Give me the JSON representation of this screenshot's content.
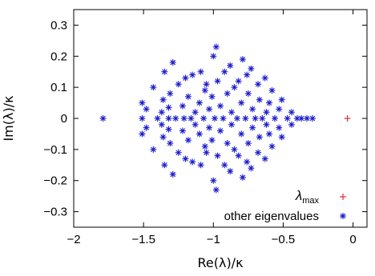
{
  "chart_data": {
    "type": "scatter",
    "title": "",
    "xlabel": "Re(λ)/κ",
    "ylabel": "Im(λ)/κ",
    "xlim": [
      -2,
      0.1
    ],
    "ylim": [
      -0.35,
      0.35
    ],
    "xticks": [
      -2,
      -1.5,
      -1,
      -0.5,
      0
    ],
    "xtick_labels": [
      "−2",
      "−1.5",
      "−1",
      "−0.5",
      "0"
    ],
    "yticks": [
      -0.3,
      -0.2,
      -0.1,
      0,
      0.1,
      0.2,
      0.3
    ],
    "ytick_labels": [
      "−0.3",
      "−0.2",
      "−0.1",
      "0",
      "0.1",
      "0.2",
      "0.3"
    ],
    "grid": false,
    "legend_position": "bottom-right",
    "series": [
      {
        "name": "λmax",
        "label_main": "λ",
        "label_sub": "max",
        "marker": "plus",
        "color": "#e02020",
        "points": [
          [
            -0.04,
            0.0
          ]
        ]
      },
      {
        "name": "other eigenvalues",
        "label_main": "other eigenvalues",
        "label_sub": "",
        "marker": "star",
        "color": "#1a1acc",
        "points": [
          [
            -1.79,
            0.0
          ],
          [
            -1.51,
            0.05
          ],
          [
            -1.51,
            0.0
          ],
          [
            -1.51,
            -0.05
          ],
          [
            -1.48,
            0.03
          ],
          [
            -1.48,
            -0.03
          ],
          [
            -1.43,
            0.1
          ],
          [
            -1.43,
            -0.1
          ],
          [
            -1.4,
            0.0
          ],
          [
            -1.37,
            0.02
          ],
          [
            -1.37,
            -0.02
          ],
          [
            -1.36,
            0.06
          ],
          [
            -1.36,
            -0.06
          ],
          [
            -1.35,
            0.15
          ],
          [
            -1.35,
            -0.15
          ],
          [
            -1.32,
            0.0
          ],
          [
            -1.32,
            0.035
          ],
          [
            -1.32,
            -0.035
          ],
          [
            -1.31,
            0.08
          ],
          [
            -1.31,
            -0.08
          ],
          [
            -1.29,
            0.18
          ],
          [
            -1.29,
            -0.18
          ],
          [
            -1.27,
            0.0
          ],
          [
            -1.25,
            0.11
          ],
          [
            -1.25,
            -0.11
          ],
          [
            -1.22,
            0.04
          ],
          [
            -1.22,
            -0.04
          ],
          [
            -1.21,
            0.0
          ],
          [
            -1.2,
            0.13
          ],
          [
            -1.2,
            -0.13
          ],
          [
            -1.18,
            0.07
          ],
          [
            -1.18,
            -0.07
          ],
          [
            -1.16,
            0.0
          ],
          [
            -1.15,
            0.14
          ],
          [
            -1.15,
            -0.14
          ],
          [
            -1.13,
            0.02
          ],
          [
            -1.13,
            -0.02
          ],
          [
            -1.1,
            0.05
          ],
          [
            -1.1,
            -0.05
          ],
          [
            -1.09,
            0.15
          ],
          [
            -1.09,
            -0.15
          ],
          [
            -1.07,
            0.0
          ],
          [
            -1.06,
            0.09
          ],
          [
            -1.06,
            -0.09
          ],
          [
            -1.05,
            0.11
          ],
          [
            -1.05,
            -0.11
          ],
          [
            -1.03,
            0.03
          ],
          [
            -1.03,
            -0.03
          ],
          [
            -1.01,
            0.07
          ],
          [
            -1.01,
            -0.07
          ],
          [
            -1.0,
            0.2
          ],
          [
            -1.0,
            -0.2
          ],
          [
            -0.99,
            0.0
          ],
          [
            -0.98,
            0.23
          ],
          [
            -0.98,
            -0.23
          ],
          [
            -0.97,
            0.12
          ],
          [
            -0.97,
            -0.12
          ],
          [
            -0.95,
            0.04
          ],
          [
            -0.95,
            -0.04
          ],
          [
            -0.93,
            0.0
          ],
          [
            -0.92,
            0.15
          ],
          [
            -0.92,
            -0.15
          ],
          [
            -0.9,
            0.08
          ],
          [
            -0.9,
            -0.08
          ],
          [
            -0.88,
            0.17
          ],
          [
            -0.88,
            -0.17
          ],
          [
            -0.87,
            0.02
          ],
          [
            -0.87,
            -0.02
          ],
          [
            -0.85,
            0.1
          ],
          [
            -0.85,
            -0.1
          ],
          [
            -0.83,
            0.0
          ],
          [
            -0.82,
            0.12
          ],
          [
            -0.82,
            -0.12
          ],
          [
            -0.8,
            0.05
          ],
          [
            -0.8,
            -0.05
          ],
          [
            -0.79,
            0.19
          ],
          [
            -0.79,
            -0.19
          ],
          [
            -0.77,
            0.0
          ],
          [
            -0.76,
            0.14
          ],
          [
            -0.76,
            -0.14
          ],
          [
            -0.75,
            0.08
          ],
          [
            -0.75,
            -0.08
          ],
          [
            -0.73,
            0.16
          ],
          [
            -0.73,
            -0.16
          ],
          [
            -0.72,
            0.03
          ],
          [
            -0.72,
            -0.03
          ],
          [
            -0.7,
            0.0
          ],
          [
            -0.68,
            0.11
          ],
          [
            -0.68,
            -0.11
          ],
          [
            -0.67,
            0.06
          ],
          [
            -0.67,
            -0.06
          ],
          [
            -0.65,
            0.0
          ],
          [
            -0.63,
            0.13
          ],
          [
            -0.63,
            -0.13
          ],
          [
            -0.62,
            0.02
          ],
          [
            -0.62,
            -0.02
          ],
          [
            -0.6,
            0.05
          ],
          [
            -0.6,
            -0.05
          ],
          [
            -0.58,
            0.09
          ],
          [
            -0.58,
            -0.09
          ],
          [
            -0.56,
            0.0
          ],
          [
            -0.53,
            0.03
          ],
          [
            -0.53,
            -0.03
          ],
          [
            -0.51,
            0.06
          ],
          [
            -0.51,
            -0.06
          ],
          [
            -0.47,
            0.0
          ],
          [
            -0.44,
            0.02
          ],
          [
            -0.44,
            -0.02
          ],
          [
            -0.4,
            0.0
          ],
          [
            -0.37,
            0.0
          ],
          [
            -0.33,
            0.0
          ],
          [
            -0.29,
            0.0
          ]
        ]
      }
    ]
  }
}
